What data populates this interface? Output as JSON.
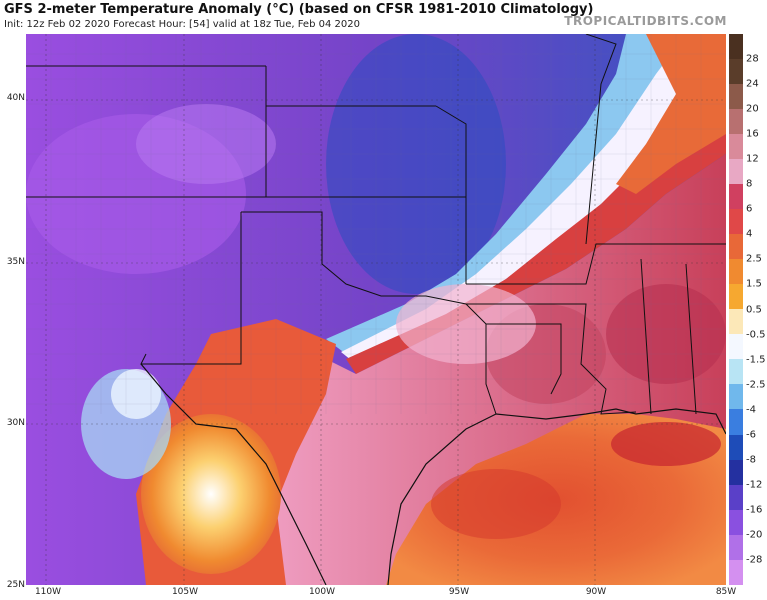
{
  "header": {
    "title": "GFS 2-meter Temperature Anomaly (°C) (based on CFSR 1981-2010 Climatology)",
    "subtitle": "Init: 12z Feb 02 2020   Forecast Hour: [54]   valid at 18z Tue, Feb 04 2020",
    "brand": "TROPICALTIDBITS.COM"
  },
  "axes": {
    "lat_labels": [
      "40N",
      "35N",
      "30N",
      "25N"
    ],
    "lon_labels": [
      "110W",
      "105W",
      "100W",
      "95W",
      "90W",
      "85W"
    ]
  },
  "colorbar": {
    "labels": [
      "28",
      "24",
      "20",
      "16",
      "12",
      "8",
      "6",
      "4",
      "2.5",
      "1.5",
      "0.5",
      "-0.5",
      "-1.5",
      "-2.5",
      "-4",
      "-6",
      "-8",
      "-12",
      "-16",
      "-20",
      "-28"
    ],
    "colors": [
      "#5a3d2a",
      "#8c5a4a",
      "#b87070",
      "#d98a9a",
      "#e8a8c4",
      "#d04060",
      "#e04848",
      "#e86838",
      "#f08a30",
      "#f6a830",
      "#fce8b8",
      "#f4f8ff",
      "#b8e4f4",
      "#70b8ec",
      "#3a7ee0",
      "#1e4cb8",
      "#2430a0",
      "#5a40c8",
      "#8a50e0",
      "#b070e8",
      "#d490f0"
    ]
  },
  "map": {
    "background_color": "#7040c0",
    "features": [
      "state-borders",
      "county-borders",
      "coastline",
      "gulf-of-mexico",
      "cold-front"
    ]
  }
}
